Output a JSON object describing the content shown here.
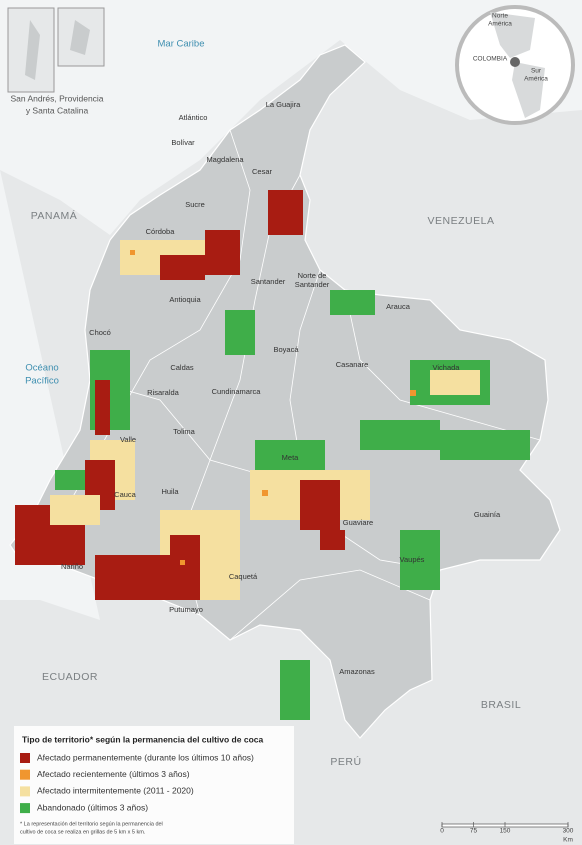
{
  "water_labels": [
    "Mar Caribe",
    [
      "Océano",
      "Pacífico"
    ]
  ],
  "inset_caption": [
    "San Andrés, Providencia",
    "y Santa Catalina"
  ],
  "globe": {
    "labels": [
      [
        "Norte",
        "América"
      ],
      "COLOMBIA",
      [
        "Sur",
        "América"
      ]
    ]
  },
  "countries": [
    "PANAMÁ",
    "VENEZUELA",
    "ECUADOR",
    "PERÚ",
    "BRASIL"
  ],
  "departments": [
    "La Guajira",
    "Atlántico",
    "Bolívar",
    "Magdalena",
    "Cesar",
    "Sucre",
    "Córdoba",
    [
      "Norte de",
      "Santander"
    ],
    "Santander",
    "Arauca",
    "Antioquia",
    "Chocó",
    "Boyacá",
    "Casanare",
    "Vichada",
    "Caldas",
    "Risaralda",
    "Cundinamarca",
    "Valle",
    "Tolima",
    "Meta",
    "Cauca",
    "Huila",
    "Guaviare",
    "Guainía",
    "Nariño",
    "Caquetá",
    "Vaupés",
    "Putumayo",
    "Amazonas"
  ],
  "legend": {
    "title": "Tipo de territorio* según la permanencia del cultivo de coca",
    "items": [
      {
        "label": "Afectado permanentemente (durante los últimos 10 años)",
        "color": "#a81c12"
      },
      {
        "label": "Afectado recientemente (últimos 3 años)",
        "color": "#f0962f"
      },
      {
        "label": "Afectado intermitentemente (2011 - 2020)",
        "color": "#f5e0a0"
      },
      {
        "label": "Abandonado (últimos 3 años)",
        "color": "#3fae49"
      }
    ],
    "footnote": [
      "* La representación del territorio según la permanencia del",
      "cultivo de coca se realiza en grillas de 5 km x 5 km."
    ]
  },
  "scale": {
    "ticks": [
      0,
      75,
      150,
      300
    ],
    "unit": "Km"
  }
}
